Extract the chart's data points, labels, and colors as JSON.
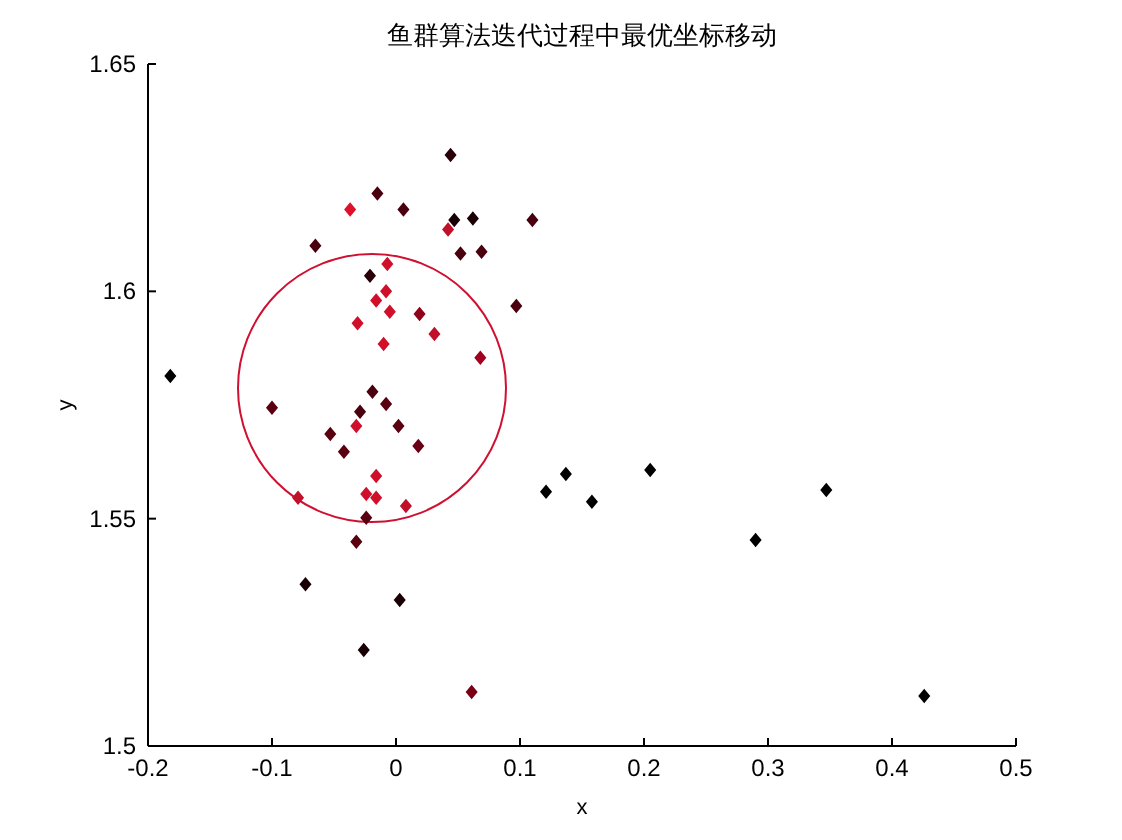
{
  "chart_data": {
    "type": "scatter",
    "title": "鱼群算法迭代过程中最优坐标移动",
    "xlabel": "x",
    "ylabel": "y",
    "xlim": [
      -0.2,
      0.5
    ],
    "xticks": [
      -0.2,
      -0.1,
      0,
      0.1,
      0.2,
      0.3,
      0.4,
      0.5
    ],
    "ylim": [
      1.5,
      1.65
    ],
    "yticks": [
      1.5,
      1.55,
      1.6,
      1.65
    ],
    "marker": "diamond",
    "grid": false,
    "series": [
      {
        "x": [
          -0.182,
          0.044,
          -0.015,
          -0.037,
          0.006,
          0.042,
          0.047,
          0.062,
          0.11,
          0.052,
          0.069,
          -0.065,
          -0.007,
          -0.021,
          -0.016,
          -0.008,
          -0.005,
          0.019,
          -0.031,
          0.031,
          -0.01,
          0.097,
          0.068,
          -0.019,
          -0.1,
          -0.029,
          -0.008,
          -0.032,
          0.002,
          -0.053,
          -0.042,
          0.018,
          -0.016,
          -0.079,
          -0.024,
          -0.016,
          0.008,
          -0.024,
          -0.032,
          -0.073,
          0.003,
          -0.026,
          0.061,
          0.121,
          0.137,
          0.158,
          0.205,
          0.29,
          0.347,
          0.426
        ],
        "values": [
          1.5814,
          1.63,
          1.6215,
          1.618,
          1.618,
          1.6136,
          1.6157,
          1.616,
          1.6157,
          1.6083,
          1.6087,
          1.61,
          1.606,
          1.6034,
          1.598,
          1.6,
          1.5955,
          1.595,
          1.593,
          1.5906,
          1.5884,
          1.5968,
          1.5854,
          1.5779,
          1.5744,
          1.5735,
          1.5752,
          1.5704,
          1.5704,
          1.5686,
          1.5647,
          1.566,
          1.5594,
          1.5546,
          1.5554,
          1.5546,
          1.5528,
          1.5502,
          1.5449,
          1.5356,
          1.5321,
          1.5211,
          1.5119,
          1.5559,
          1.5598,
          1.5537,
          1.5607,
          1.5453,
          1.5563,
          1.511
        ],
        "colors": [
          "#000000",
          "#2a0008",
          "#4a000e",
          "#e0102a",
          "#4a000e",
          "#c0102a",
          "#1a0005",
          "#1a0005",
          "#4a000e",
          "#4a000e",
          "#4a000e",
          "#4a000e",
          "#d0102a",
          "#2a0008",
          "#d0102a",
          "#d0102a",
          "#d0102a",
          "#90001a",
          "#d0102a",
          "#c0102a",
          "#d0102a",
          "#4a000e",
          "#a0001e",
          "#4a000e",
          "#5a0010",
          "#4a000e",
          "#5a0010",
          "#d0102a",
          "#5a0010",
          "#5a0010",
          "#5a0010",
          "#6a0014",
          "#d0102a",
          "#c0102a",
          "#d0102a",
          "#d0102a",
          "#c0102a",
          "#5a0010",
          "#5a0010",
          "#1a0005",
          "#1a0005",
          "#1a0005",
          "#7a0016",
          "#000000",
          "#000000",
          "#000000",
          "#000000",
          "#000000",
          "#000000",
          "#000000"
        ]
      }
    ]
  }
}
